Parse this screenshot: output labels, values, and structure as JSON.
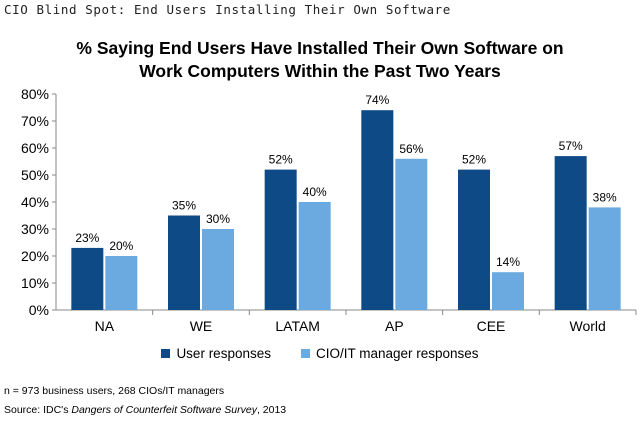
{
  "header": {
    "text": "CIO Blind Spot: End Users Installing Their Own Software"
  },
  "chart_data": {
    "type": "bar",
    "title_line1": "% Saying End Users Have Installed Their Own Software on",
    "title_line2": "Work Computers Within the Past Two Years",
    "categories": [
      "NA",
      "WE",
      "LATAM",
      "AP",
      "CEE",
      "World"
    ],
    "series": [
      {
        "name": "User responses",
        "color": "#0e4a86",
        "values": [
          23,
          35,
          52,
          74,
          52,
          57
        ],
        "labels": [
          "23%",
          "35%",
          "52%",
          "74%",
          "52%",
          "57%"
        ]
      },
      {
        "name": "CIO/IT manager responses",
        "color": "#6aaae0",
        "values": [
          20,
          30,
          40,
          56,
          14,
          38
        ],
        "labels": [
          "20%",
          "30%",
          "40%",
          "56%",
          "14%",
          "38%"
        ]
      }
    ],
    "yticks": [
      0,
      10,
      20,
      30,
      40,
      50,
      60,
      70,
      80
    ],
    "ytick_labels": [
      "0%",
      "10%",
      "20%",
      "30%",
      "40%",
      "50%",
      "60%",
      "70%",
      "80%"
    ],
    "ylim": [
      0,
      80
    ],
    "xlabel": "",
    "ylabel": "",
    "grid": false,
    "legend_position": "bottom"
  },
  "footer": {
    "note": "n = 973 business users, 268 CIOs/IT managers",
    "source_prefix": "Source: IDC's ",
    "source_title": "Dangers of Counterfeit Software Survey",
    "source_suffix": ", 2013"
  }
}
